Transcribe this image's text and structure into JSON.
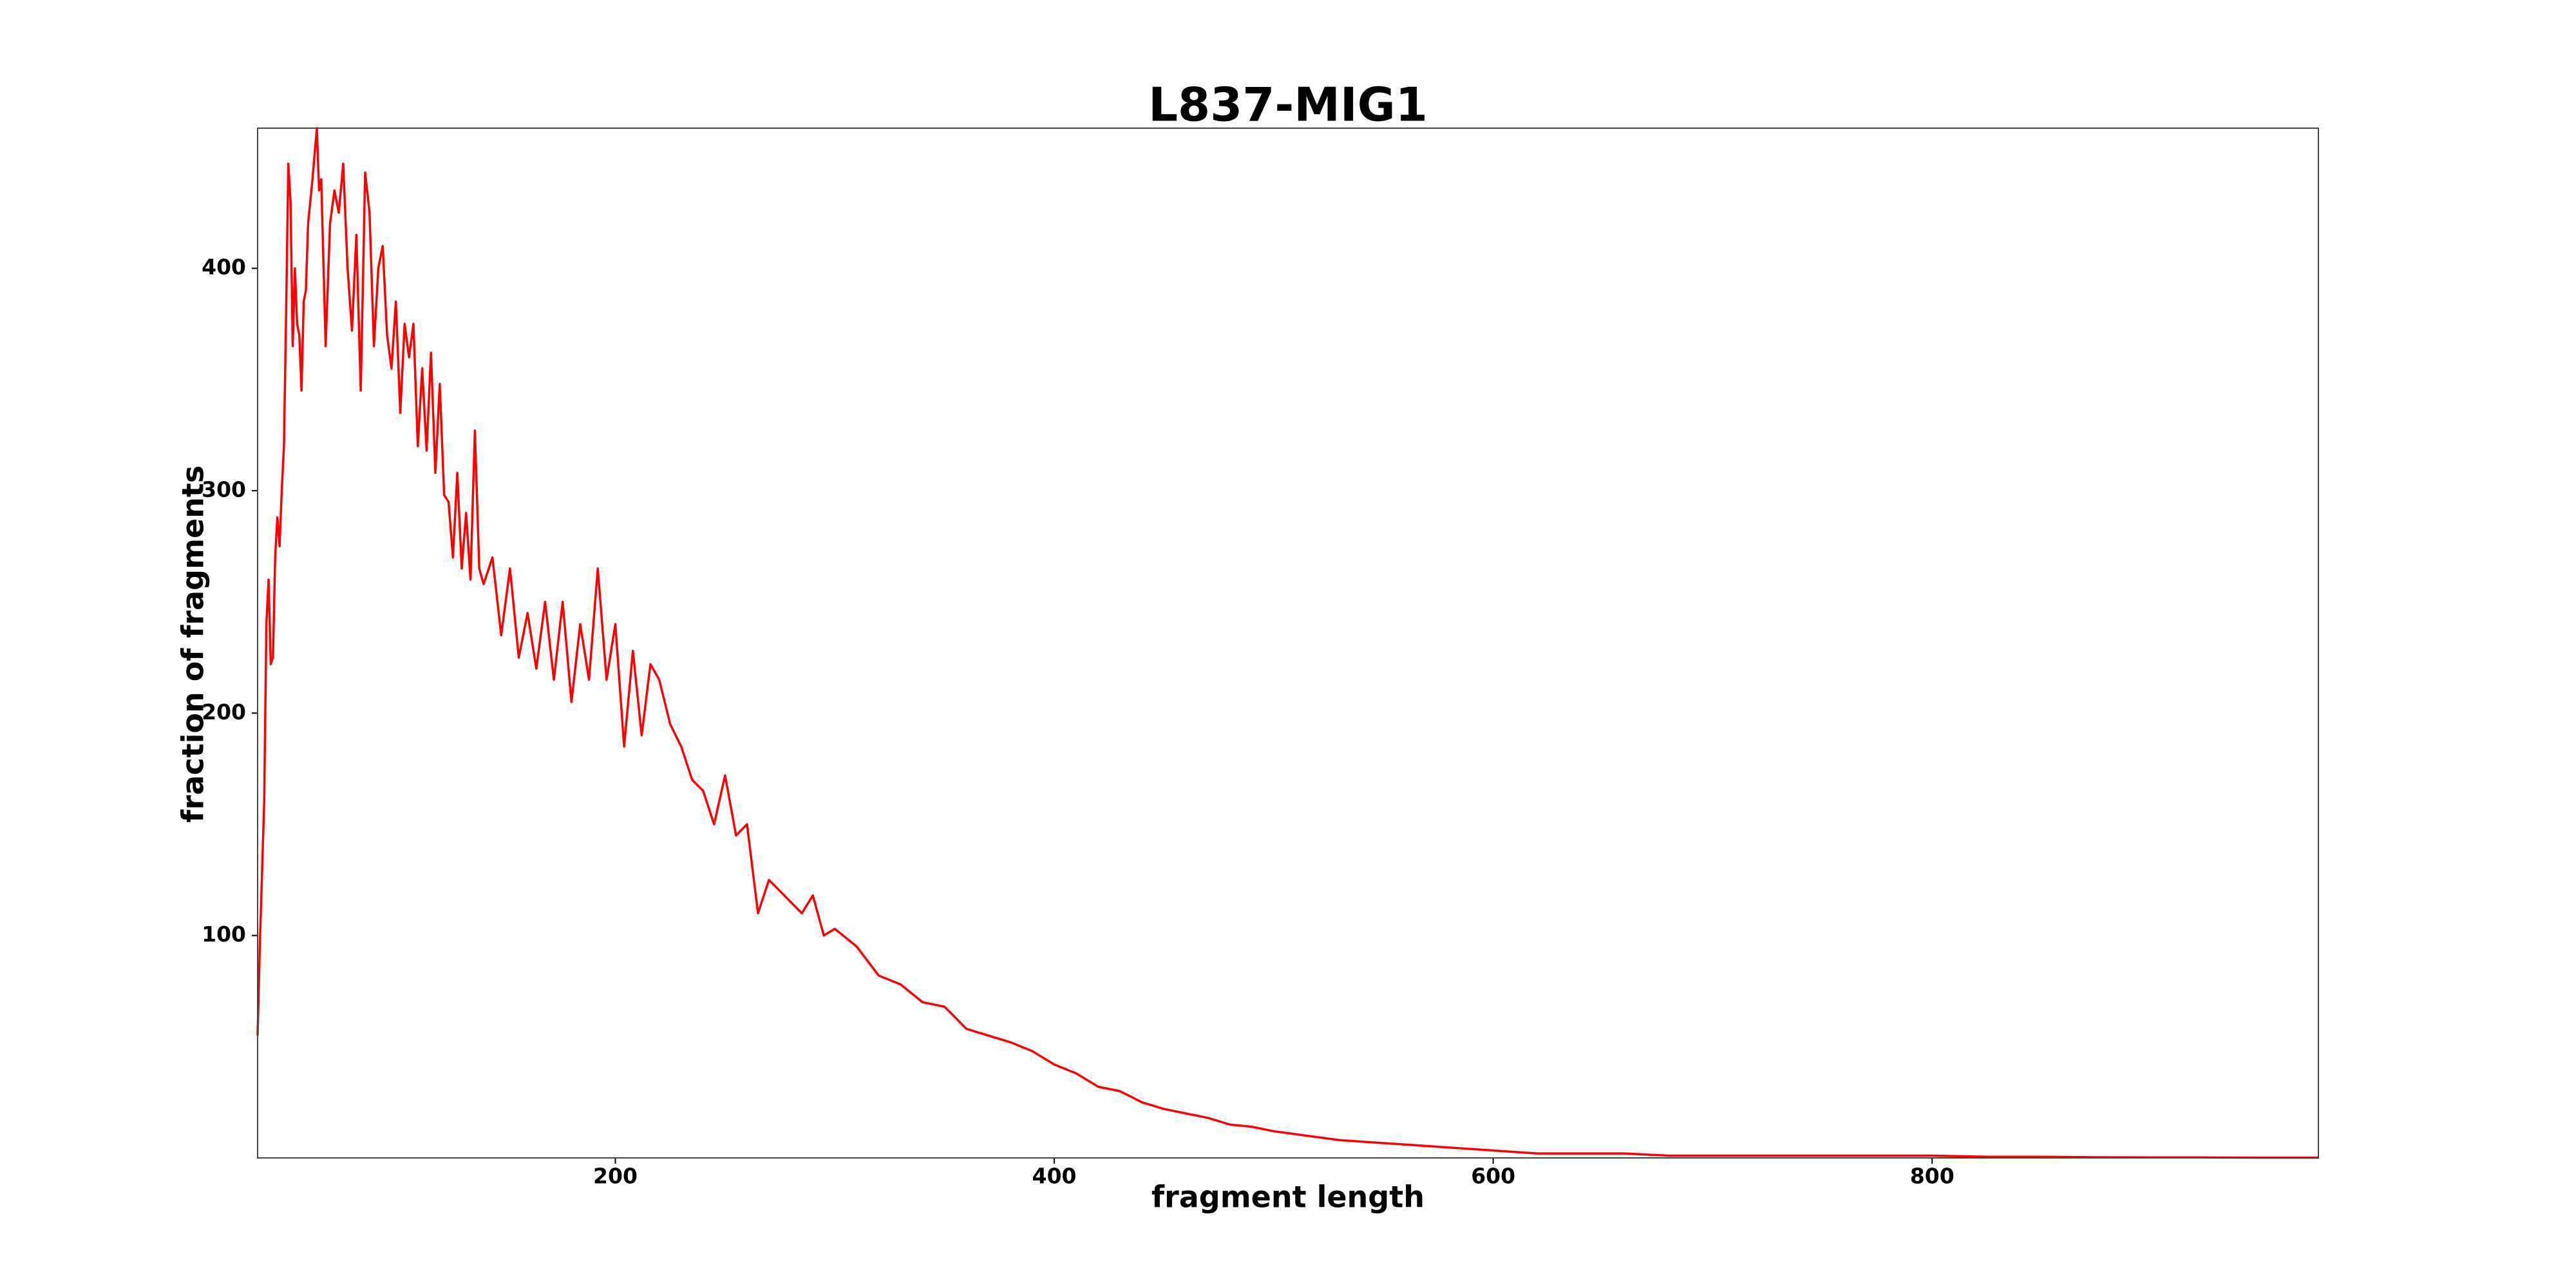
{
  "chart_data": {
    "type": "line",
    "title": "L837-MIG1",
    "x_label": "fragment length",
    "y_label": "fraction of fragments",
    "x": [
      37,
      38,
      40,
      41,
      42,
      43,
      44,
      45,
      46,
      47,
      48,
      49,
      50,
      51,
      52,
      53,
      54,
      55,
      56,
      57,
      58,
      59,
      60,
      62,
      64,
      65,
      66,
      68,
      70,
      72,
      74,
      76,
      78,
      80,
      82,
      84,
      86,
      88,
      90,
      92,
      94,
      96,
      98,
      100,
      102,
      104,
      106,
      108,
      110,
      112,
      114,
      116,
      118,
      120,
      122,
      124,
      126,
      128,
      130,
      132,
      134,
      136,
      138,
      140,
      144,
      148,
      152,
      156,
      160,
      164,
      168,
      172,
      176,
      180,
      184,
      188,
      192,
      196,
      200,
      204,
      208,
      212,
      216,
      220,
      225,
      230,
      235,
      240,
      245,
      250,
      255,
      260,
      265,
      270,
      275,
      280,
      285,
      290,
      295,
      300,
      310,
      320,
      330,
      340,
      350,
      360,
      370,
      380,
      390,
      400,
      410,
      420,
      430,
      440,
      450,
      460,
      470,
      480,
      490,
      500,
      515,
      530,
      545,
      560,
      575,
      590,
      605,
      620,
      640,
      660,
      680,
      700,
      725,
      750,
      775,
      800,
      825,
      850,
      875,
      900,
      925,
      950,
      976
    ],
    "series": [
      {
        "name": null,
        "color": "#ff0000",
        "values": [
          55,
          95,
          160,
          240,
          260,
          222,
          225,
          270,
          288,
          275,
          300,
          320,
          380,
          447,
          430,
          365,
          400,
          375,
          370,
          345,
          385,
          390,
          420,
          440,
          463,
          435,
          440,
          365,
          420,
          435,
          425,
          447,
          400,
          372,
          415,
          345,
          443,
          425,
          365,
          400,
          410,
          370,
          355,
          385,
          335,
          375,
          360,
          375,
          320,
          355,
          318,
          362,
          308,
          348,
          298,
          295,
          270,
          308,
          265,
          290,
          260,
          327,
          265,
          258,
          270,
          235,
          265,
          225,
          245,
          220,
          250,
          215,
          250,
          205,
          240,
          215,
          265,
          215,
          240,
          185,
          228,
          190,
          222,
          215,
          195,
          185,
          170,
          165,
          150,
          172,
          145,
          150,
          110,
          125,
          120,
          115,
          110,
          118,
          100,
          103,
          95,
          82,
          78,
          70,
          68,
          58,
          55,
          52,
          48,
          42,
          38,
          32,
          30,
          25,
          22,
          20,
          18,
          15,
          14,
          12,
          10,
          8,
          7,
          6,
          5,
          4,
          3,
          2,
          2,
          2,
          1,
          1,
          1,
          1,
          1,
          1,
          0.5,
          0.5,
          0.3,
          0.2,
          0.2,
          0.1,
          0.1
        ]
      }
    ],
    "xlim": [
      37,
      976
    ],
    "ylim": [
      0,
      463
    ],
    "xticks": [
      200,
      400,
      600,
      800
    ],
    "yticks": [
      100,
      200,
      300,
      400
    ]
  }
}
